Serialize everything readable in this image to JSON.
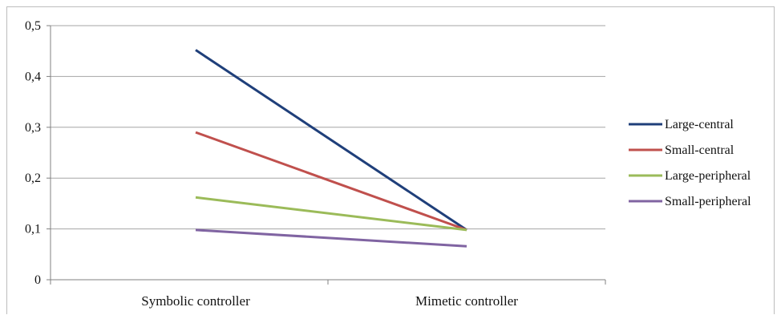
{
  "chart_data": {
    "type": "line",
    "categories": [
      "Symbolic controller",
      "Mimetic controller"
    ],
    "series": [
      {
        "name": "Large-central",
        "values": [
          0.452,
          0.098
        ],
        "color": "#1f3f7a"
      },
      {
        "name": "Small-central",
        "values": [
          0.29,
          0.098
        ],
        "color": "#c0504d"
      },
      {
        "name": "Large-peripheral",
        "values": [
          0.162,
          0.098
        ],
        "color": "#9bbb59"
      },
      {
        "name": "Small-peripheral",
        "values": [
          0.098,
          0.066
        ],
        "color": "#8064a2"
      }
    ],
    "yticks": [
      "0",
      "0,1",
      "0,2",
      "0,3",
      "0,4",
      "0,5"
    ],
    "ylim": [
      0,
      0.5
    ],
    "grid": true,
    "legend": "right"
  }
}
